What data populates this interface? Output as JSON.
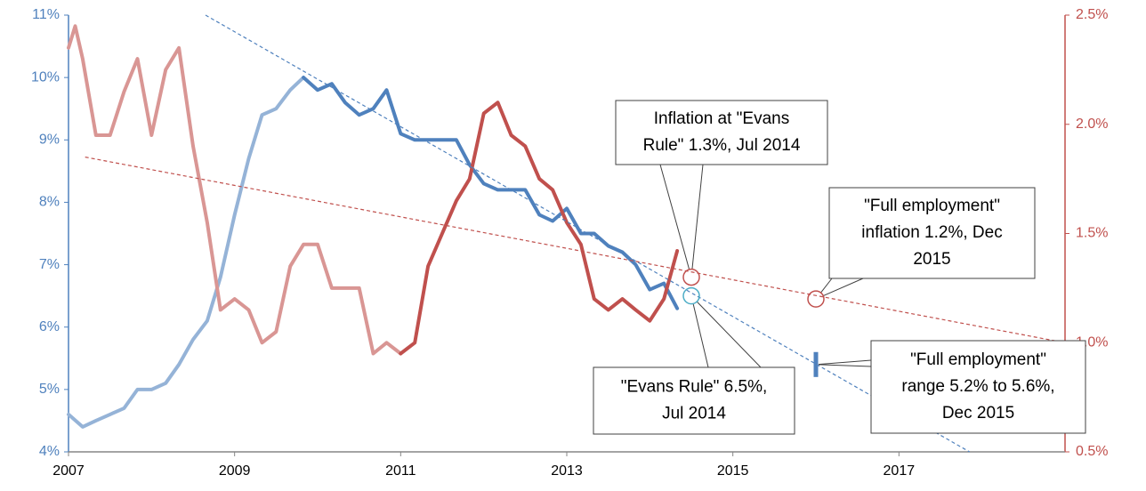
{
  "chart_data": {
    "type": "line",
    "xlim": [
      2007,
      2019
    ],
    "xticks": [
      2007,
      2009,
      2011,
      2013,
      2015,
      2017
    ],
    "ylim": [
      4,
      11
    ],
    "yticks": [
      {
        "value": 4,
        "label": "4%"
      },
      {
        "value": 5,
        "label": "5%"
      },
      {
        "value": 6,
        "label": "6%"
      },
      {
        "value": 7,
        "label": "7%"
      },
      {
        "value": 8,
        "label": "8%"
      },
      {
        "value": 9,
        "label": "9%"
      },
      {
        "value": 10,
        "label": "10%"
      },
      {
        "value": 11,
        "label": "11%"
      }
    ],
    "y2lim": [
      0.5,
      2.5
    ],
    "y2ticks": [
      {
        "value": 0.5,
        "label": "0.5%"
      },
      {
        "value": 1.0,
        "label": "1.0%"
      },
      {
        "value": 1.5,
        "label": "1.5%"
      },
      {
        "value": 2.0,
        "label": "2.0%"
      },
      {
        "value": 2.5,
        "label": "2.5%"
      }
    ],
    "y_color": "#4f81bd",
    "y2_color": "#c0504d",
    "series": [
      {
        "color": "#95b3d7",
        "x": [
          2007.0,
          2007.17,
          2007.33,
          2007.5,
          2007.67,
          2007.83,
          2008.0,
          2008.17,
          2008.33,
          2008.5,
          2008.67,
          2008.83,
          2009.0,
          2009.17,
          2009.33,
          2009.5,
          2009.67,
          2009.83
        ],
        "values": [
          4.6,
          4.4,
          4.5,
          4.6,
          4.7,
          5.0,
          5.0,
          5.1,
          5.4,
          5.8,
          6.1,
          6.8,
          7.8,
          8.7,
          9.4,
          9.5,
          9.8,
          10.0
        ]
      },
      {
        "color": "#4f81bd",
        "x": [
          2009.83,
          2010.0,
          2010.17,
          2010.33,
          2010.5,
          2010.67,
          2010.83,
          2011.0,
          2011.17,
          2011.33,
          2011.5,
          2011.67,
          2011.83,
          2012.0,
          2012.17,
          2012.33,
          2012.5,
          2012.67,
          2012.83,
          2013.0,
          2013.17,
          2013.33,
          2013.5,
          2013.67,
          2013.83,
          2014.0,
          2014.17,
          2014.33
        ],
        "values": [
          10.0,
          9.8,
          9.9,
          9.6,
          9.4,
          9.5,
          9.8,
          9.1,
          9.0,
          9.0,
          9.0,
          9.0,
          8.6,
          8.3,
          8.2,
          8.2,
          8.2,
          7.8,
          7.7,
          7.9,
          7.5,
          7.5,
          7.3,
          7.2,
          7.0,
          6.6,
          6.7,
          6.3
        ]
      },
      {
        "color": "#d99694",
        "axis": "y2",
        "x": [
          2007.0,
          2007.08,
          2007.17,
          2007.33,
          2007.5,
          2007.67,
          2007.83,
          2008.0,
          2008.17,
          2008.33,
          2008.5,
          2008.67,
          2008.83,
          2009.0,
          2009.17,
          2009.33,
          2009.5,
          2009.67,
          2009.83,
          2010.0,
          2010.17,
          2010.33,
          2010.5,
          2010.67,
          2010.83,
          2011.0
        ],
        "values": [
          2.35,
          2.45,
          2.3,
          1.95,
          1.95,
          2.15,
          2.3,
          1.95,
          2.25,
          2.35,
          1.9,
          1.55,
          1.15,
          1.2,
          1.15,
          1.0,
          1.05,
          1.35,
          1.45,
          1.45,
          1.25,
          1.25,
          1.25,
          0.95,
          1.0,
          0.95
        ]
      },
      {
        "color": "#c0504d",
        "axis": "y2",
        "x": [
          2011.0,
          2011.17,
          2011.33,
          2011.5,
          2011.67,
          2011.83,
          2012.0,
          2012.17,
          2012.33,
          2012.5,
          2012.67,
          2012.83,
          2013.0,
          2013.17,
          2013.33,
          2013.5,
          2013.67,
          2013.83,
          2014.0,
          2014.17,
          2014.33
        ],
        "values": [
          0.95,
          1.0,
          1.35,
          1.5,
          1.65,
          1.75,
          2.05,
          2.1,
          1.95,
          1.9,
          1.75,
          1.7,
          1.55,
          1.45,
          1.2,
          1.15,
          1.2,
          1.15,
          1.1,
          1.2,
          1.42
        ]
      },
      {
        "color": "#4f81bd",
        "dashed": true,
        "x": [
          2008.65,
          2017.85
        ],
        "values": [
          11,
          4
        ]
      },
      {
        "color": "#c0504d",
        "dashed": true,
        "axis": "y2",
        "x": [
          2007.2,
          2019
        ],
        "values": [
          1.85,
          1.0
        ]
      }
    ],
    "annotations": [
      {
        "lines": [
          "Inflation at \"Evans",
          "Rule\" 1.3%, Jul 2014"
        ],
        "x": 2014.5,
        "y": 1.3,
        "axis": "y2",
        "color": "#c0504d"
      },
      {
        "lines": [
          "\"Full employment\"",
          "inflation 1.2%, Dec",
          "2015"
        ],
        "x": 2016.0,
        "y": 1.2,
        "axis": "y2",
        "color": "#c0504d"
      },
      {
        "lines": [
          "\"Evans Rule\" 6.5%,",
          "Jul 2014"
        ],
        "x": 2014.5,
        "y": 6.5,
        "color": "#4bacc6"
      },
      {
        "lines": [
          "\"Full employment\"",
          "range 5.2% to 5.6%,",
          "Dec 2015"
        ],
        "x": 2016.0,
        "range": [
          5.2,
          5.6
        ],
        "color": "#4f81bd"
      }
    ]
  }
}
